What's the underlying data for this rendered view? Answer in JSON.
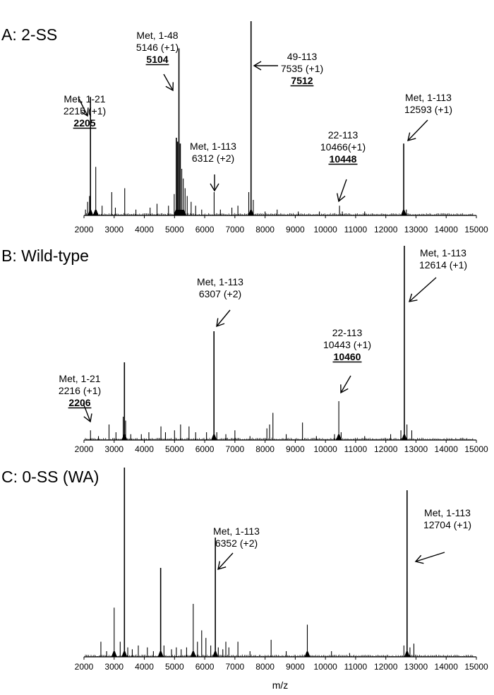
{
  "x_axis_label": "m/z",
  "chart_data": [
    {
      "type": "line",
      "title": "A: 2-SS",
      "xlabel": "",
      "ylabel": "",
      "xlim": [
        2000,
        15000
      ],
      "xticks": [
        "2000",
        "3000",
        "4000",
        "5000",
        "6000",
        "7000",
        "8000",
        "9000",
        "10000",
        "11000",
        "12000",
        "13000",
        "14000",
        "15000"
      ],
      "ylim": [
        0,
        100
      ],
      "grid": false,
      "peaks": [
        {
          "x": 2050,
          "y": 3
        },
        {
          "x": 2120,
          "y": 7
        },
        {
          "x": 2185,
          "y": 10
        },
        {
          "x": 2215,
          "y": 61
        },
        {
          "x": 2390,
          "y": 25
        },
        {
          "x": 2600,
          "y": 5
        },
        {
          "x": 2920,
          "y": 12
        },
        {
          "x": 3040,
          "y": 4
        },
        {
          "x": 3350,
          "y": 14
        },
        {
          "x": 3720,
          "y": 3
        },
        {
          "x": 4190,
          "y": 4
        },
        {
          "x": 4420,
          "y": 6
        },
        {
          "x": 4800,
          "y": 5
        },
        {
          "x": 4990,
          "y": 11
        },
        {
          "x": 5060,
          "y": 40
        },
        {
          "x": 5100,
          "y": 38
        },
        {
          "x": 5146,
          "y": 86
        },
        {
          "x": 5190,
          "y": 37
        },
        {
          "x": 5240,
          "y": 24
        },
        {
          "x": 5290,
          "y": 19
        },
        {
          "x": 5350,
          "y": 14
        },
        {
          "x": 5420,
          "y": 10
        },
        {
          "x": 5550,
          "y": 7
        },
        {
          "x": 5700,
          "y": 5
        },
        {
          "x": 5900,
          "y": 3
        },
        {
          "x": 6312,
          "y": 12
        },
        {
          "x": 6520,
          "y": 3
        },
        {
          "x": 6900,
          "y": 4
        },
        {
          "x": 7100,
          "y": 5
        },
        {
          "x": 7460,
          "y": 12
        },
        {
          "x": 7535,
          "y": 100
        },
        {
          "x": 7610,
          "y": 8
        },
        {
          "x": 8000,
          "y": 2
        },
        {
          "x": 8400,
          "y": 3
        },
        {
          "x": 9100,
          "y": 2
        },
        {
          "x": 9800,
          "y": 2
        },
        {
          "x": 10466,
          "y": 5
        },
        {
          "x": 10560,
          "y": 2
        },
        {
          "x": 11300,
          "y": 2
        },
        {
          "x": 12593,
          "y": 37
        },
        {
          "x": 12680,
          "y": 3
        }
      ],
      "annotations": [
        {
          "lines": [
            "Met, 1-21",
            "2215 (+1)",
            "2205"
          ],
          "bold_last": true
        },
        {
          "lines": [
            "Met, 1-48",
            "5146 (+1)",
            "5104"
          ],
          "bold_last": true
        },
        {
          "lines": [
            "Met, 1-113",
            "6312 (+2)"
          ],
          "bold_last": false
        },
        {
          "lines": [
            "49-113",
            "7535 (+1)",
            "7512"
          ],
          "bold_last": true
        },
        {
          "lines": [
            "22-113",
            "10466(+1)",
            "10448"
          ],
          "bold_last": true
        },
        {
          "lines": [
            "Met, 1-113",
            "12593 (+1)"
          ],
          "bold_last": false
        }
      ]
    },
    {
      "type": "line",
      "title": "B: Wild-type",
      "xlabel": "",
      "ylabel": "",
      "xlim": [
        2000,
        15000
      ],
      "xticks": [
        "2000",
        "3000",
        "4000",
        "5000",
        "6000",
        "7000",
        "8000",
        "9000",
        "10000",
        "11000",
        "12000",
        "13000",
        "14000",
        "15000"
      ],
      "ylim": [
        0,
        100
      ],
      "grid": false,
      "peaks": [
        {
          "x": 2216,
          "y": 5
        },
        {
          "x": 2480,
          "y": 2
        },
        {
          "x": 2830,
          "y": 8
        },
        {
          "x": 3060,
          "y": 4
        },
        {
          "x": 3300,
          "y": 12
        },
        {
          "x": 3340,
          "y": 40
        },
        {
          "x": 3380,
          "y": 10
        },
        {
          "x": 3550,
          "y": 3
        },
        {
          "x": 3900,
          "y": 3
        },
        {
          "x": 4150,
          "y": 4
        },
        {
          "x": 4550,
          "y": 7
        },
        {
          "x": 4700,
          "y": 4
        },
        {
          "x": 5000,
          "y": 5
        },
        {
          "x": 5200,
          "y": 8
        },
        {
          "x": 5480,
          "y": 7
        },
        {
          "x": 5700,
          "y": 4
        },
        {
          "x": 6060,
          "y": 4
        },
        {
          "x": 6307,
          "y": 56
        },
        {
          "x": 6400,
          "y": 4
        },
        {
          "x": 6700,
          "y": 3
        },
        {
          "x": 7000,
          "y": 5
        },
        {
          "x": 7500,
          "y": 2
        },
        {
          "x": 8060,
          "y": 6
        },
        {
          "x": 8150,
          "y": 8
        },
        {
          "x": 8260,
          "y": 14
        },
        {
          "x": 8700,
          "y": 3
        },
        {
          "x": 9240,
          "y": 9
        },
        {
          "x": 9700,
          "y": 2
        },
        {
          "x": 10300,
          "y": 3
        },
        {
          "x": 10443,
          "y": 20
        },
        {
          "x": 10520,
          "y": 4
        },
        {
          "x": 11300,
          "y": 2
        },
        {
          "x": 12160,
          "y": 3
        },
        {
          "x": 12500,
          "y": 5
        },
        {
          "x": 12614,
          "y": 100
        },
        {
          "x": 12700,
          "y": 8
        },
        {
          "x": 12860,
          "y": 5
        }
      ],
      "annotations": [
        {
          "lines": [
            "Met, 1-21",
            "2216 (+1)",
            "2206"
          ],
          "bold_last": true
        },
        {
          "lines": [
            "Met, 1-113",
            "6307 (+2)"
          ],
          "bold_last": false
        },
        {
          "lines": [
            "22-113",
            "10443 (+1)",
            "10460"
          ],
          "bold_last": true
        },
        {
          "lines": [
            "Met, 1-113",
            "12614 (+1)"
          ],
          "bold_last": false
        }
      ]
    },
    {
      "type": "line",
      "title": "C: 0-SS (WA)",
      "xlabel": "m/z",
      "ylabel": "",
      "xlim": [
        2000,
        15000
      ],
      "xticks": [
        "2000",
        "3000",
        "4000",
        "5000",
        "6000",
        "7000",
        "8000",
        "9000",
        "10000",
        "11000",
        "12000",
        "13000",
        "14000",
        "15000"
      ],
      "ylim": [
        0,
        100
      ],
      "grid": false,
      "peaks": [
        {
          "x": 2560,
          "y": 8
        },
        {
          "x": 2750,
          "y": 3
        },
        {
          "x": 3000,
          "y": 26
        },
        {
          "x": 3200,
          "y": 8
        },
        {
          "x": 3340,
          "y": 100
        },
        {
          "x": 3450,
          "y": 5
        },
        {
          "x": 3600,
          "y": 4
        },
        {
          "x": 3800,
          "y": 6
        },
        {
          "x": 4100,
          "y": 5
        },
        {
          "x": 4300,
          "y": 3
        },
        {
          "x": 4540,
          "y": 47
        },
        {
          "x": 4650,
          "y": 6
        },
        {
          "x": 4900,
          "y": 4
        },
        {
          "x": 5060,
          "y": 5
        },
        {
          "x": 5220,
          "y": 4
        },
        {
          "x": 5400,
          "y": 5
        },
        {
          "x": 5620,
          "y": 28
        },
        {
          "x": 5760,
          "y": 8
        },
        {
          "x": 5900,
          "y": 14
        },
        {
          "x": 6040,
          "y": 10
        },
        {
          "x": 6200,
          "y": 6
        },
        {
          "x": 6352,
          "y": 63
        },
        {
          "x": 6450,
          "y": 5
        },
        {
          "x": 6600,
          "y": 4
        },
        {
          "x": 6700,
          "y": 8
        },
        {
          "x": 6800,
          "y": 5
        },
        {
          "x": 7100,
          "y": 8
        },
        {
          "x": 7500,
          "y": 3
        },
        {
          "x": 8200,
          "y": 9
        },
        {
          "x": 8700,
          "y": 3
        },
        {
          "x": 9400,
          "y": 17
        },
        {
          "x": 10200,
          "y": 3
        },
        {
          "x": 10800,
          "y": 2
        },
        {
          "x": 12600,
          "y": 6
        },
        {
          "x": 12704,
          "y": 88
        },
        {
          "x": 12800,
          "y": 5
        },
        {
          "x": 12930,
          "y": 7
        }
      ],
      "annotations": [
        {
          "lines": [
            "Met, 1-113",
            "6352 (+2)"
          ],
          "bold_last": false
        },
        {
          "lines": [
            "Met, 1-113",
            "12704 (+1)"
          ],
          "bold_last": false
        }
      ]
    }
  ]
}
